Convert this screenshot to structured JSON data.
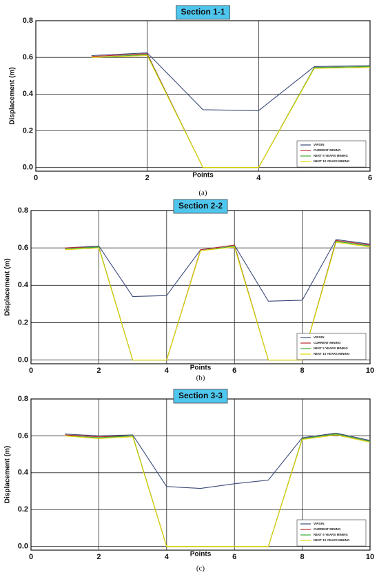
{
  "chart_data": [
    {
      "type": "line",
      "title": "Section 1-1",
      "caption": "(a)",
      "x_label": "Points",
      "y_label": "Displacement (m)",
      "x": [
        1,
        2,
        3,
        4,
        5,
        6
      ],
      "series": [
        {
          "name": "VIRGIN",
          "color": "#3b4a7a",
          "values": [
            0.61,
            0.625,
            0.315,
            0.31,
            0.55,
            0.555
          ]
        },
        {
          "name": "CURRENT MINING",
          "color": "#c0282d",
          "values": [
            0.605,
            0.62,
            0,
            0,
            0.545,
            0.55
          ]
        },
        {
          "name": "NEXT 5 YEARS MINING",
          "color": "#3aaa35",
          "values": [
            0.6,
            0.615,
            0,
            0,
            0.545,
            0.55
          ]
        },
        {
          "name": "NEXT 10 YEARS MINING",
          "color": "#e5d800",
          "values": [
            0.6,
            0.61,
            0,
            0,
            0.54,
            0.545
          ]
        }
      ],
      "xlim": [
        0,
        6
      ],
      "xticks": [
        0,
        2,
        4,
        6
      ],
      "ylim": [
        -0.02,
        0.8
      ],
      "yticks": [
        {
          "value": 0,
          "label": "0.0"
        },
        0.2,
        0.4,
        0.6,
        0.8
      ],
      "grid": true,
      "legend": "lower right"
    },
    {
      "type": "line",
      "title": "Section 2-2",
      "caption": "(b)",
      "x_label": "Points",
      "y_label": "Displacement (m)",
      "x": [
        1,
        2,
        3,
        4,
        5,
        6,
        7,
        8,
        9,
        10
      ],
      "series": [
        {
          "name": "VIRGIN",
          "color": "#3b4a7a",
          "values": [
            0.6,
            0.61,
            0.34,
            0.345,
            0.59,
            0.615,
            0.315,
            0.32,
            0.645,
            0.62
          ]
        },
        {
          "name": "CURRENT MINING",
          "color": "#c0282d",
          "values": [
            0.6,
            0.605,
            0,
            0,
            0.59,
            0.615,
            0,
            0,
            0.64,
            0.615
          ]
        },
        {
          "name": "NEXT 5 YEARS MINING",
          "color": "#3aaa35",
          "values": [
            0.595,
            0.605,
            0,
            0,
            0.585,
            0.61,
            0,
            0,
            0.635,
            0.61
          ]
        },
        {
          "name": "NEXT 10 YEARS MINING",
          "color": "#e5d800",
          "values": [
            0.59,
            0.6,
            0,
            0,
            0.585,
            0.605,
            0,
            0,
            0.63,
            0.605
          ]
        }
      ],
      "xlim": [
        0,
        10
      ],
      "xticks": [
        0,
        2,
        4,
        6,
        8,
        10
      ],
      "ylim": [
        -0.02,
        0.8
      ],
      "yticks": [
        {
          "value": 0,
          "label": "0.0"
        },
        0.2,
        0.4,
        0.6,
        0.8
      ],
      "grid": true,
      "legend": "lower right"
    },
    {
      "type": "line",
      "title": "Section 3-3",
      "caption": "(c)",
      "x_label": "Points",
      "y_label": "Displacement (m)",
      "x": [
        1,
        2,
        3,
        4,
        5,
        6,
        7,
        8,
        9,
        10
      ],
      "series": [
        {
          "name": "VIRGIN",
          "color": "#3b4a7a",
          "values": [
            0.61,
            0.6,
            0.605,
            0.325,
            0.315,
            0.34,
            0.36,
            0.59,
            0.615,
            0.575
          ]
        },
        {
          "name": "CURRENT MINING",
          "color": "#c0282d",
          "values": [
            0.605,
            0.595,
            0.6,
            0,
            0,
            0,
            0,
            0.585,
            0.61,
            0.57
          ]
        },
        {
          "name": "NEXT 5 YEARS MINING",
          "color": "#3aaa35",
          "values": [
            0.6,
            0.59,
            0.6,
            0,
            0,
            0,
            0,
            0.585,
            0.61,
            0.57
          ]
        },
        {
          "name": "NEXT 10 YEARS MINING",
          "color": "#e5d800",
          "values": [
            0.6,
            0.585,
            0.595,
            0,
            0,
            0,
            0,
            0.58,
            0.605,
            0.565
          ]
        }
      ],
      "xlim": [
        0,
        10
      ],
      "xticks": [
        0,
        2,
        4,
        6,
        8,
        10
      ],
      "ylim": [
        -0.02,
        0.8
      ],
      "yticks": [
        {
          "value": 0,
          "label": "0.0"
        },
        0.2,
        0.4,
        0.6,
        0.8
      ],
      "grid": true,
      "legend": "lower right"
    }
  ]
}
